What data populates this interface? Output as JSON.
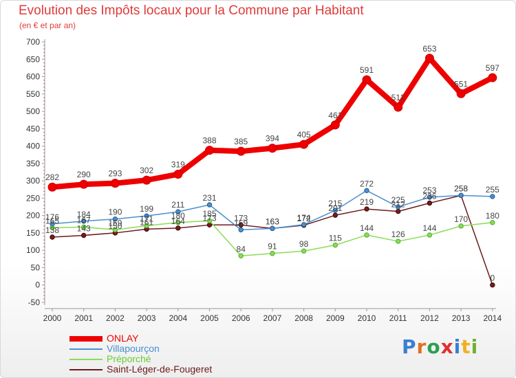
{
  "header": {
    "title": "Evolution des Impôts locaux pour la Commune par Habitant",
    "subtitle": "(en € et par an)"
  },
  "chart_data": {
    "type": "line",
    "title": "Evolution des Impôts locaux pour la Commune par Habitant",
    "subtitle": "(en € et par an)",
    "xlabel": "",
    "ylabel": "",
    "ylim": [
      -50,
      700
    ],
    "yticks": [
      -50,
      0,
      50,
      100,
      150,
      200,
      250,
      300,
      350,
      400,
      450,
      500,
      550,
      600,
      650,
      700
    ],
    "grid": false,
    "categories": [
      "2000",
      "2001",
      "2002",
      "2003",
      "2004",
      "2005",
      "2006",
      "2007",
      "2008",
      "2009",
      "2010",
      "2011",
      "2012",
      "2013",
      "2014"
    ],
    "series": [
      {
        "name": "ONLAY",
        "color": "#ee0000",
        "values": [
          282,
          290,
          293,
          302,
          319,
          388,
          385,
          394,
          405,
          461,
          591,
          512,
          653,
          551,
          597
        ]
      },
      {
        "name": "Villapourçon",
        "color": "#4a8fd0",
        "values": [
          176,
          184,
          190,
          199,
          211,
          231,
          159,
          163,
          174,
          215,
          272,
          225,
          253,
          258,
          255
        ]
      },
      {
        "name": "Préporché",
        "color": "#88dd55",
        "values": [
          165,
          167,
          159,
          171,
          180,
          185,
          84,
          91,
          98,
          115,
          144,
          126,
          144,
          170,
          180
        ]
      },
      {
        "name": "Saint-Léger-de-Fougeret",
        "color": "#6b1a1a",
        "values": [
          138,
          143,
          150,
          161,
          164,
          173,
          173,
          163,
          172,
          201,
          219,
          212,
          236,
          258,
          0
        ]
      }
    ]
  },
  "legend": {
    "items": [
      "ONLAY",
      "Villapourçon",
      "Préporché",
      "Saint-Léger-de-Fougeret"
    ]
  },
  "logo": {
    "text": "Proxiti"
  }
}
